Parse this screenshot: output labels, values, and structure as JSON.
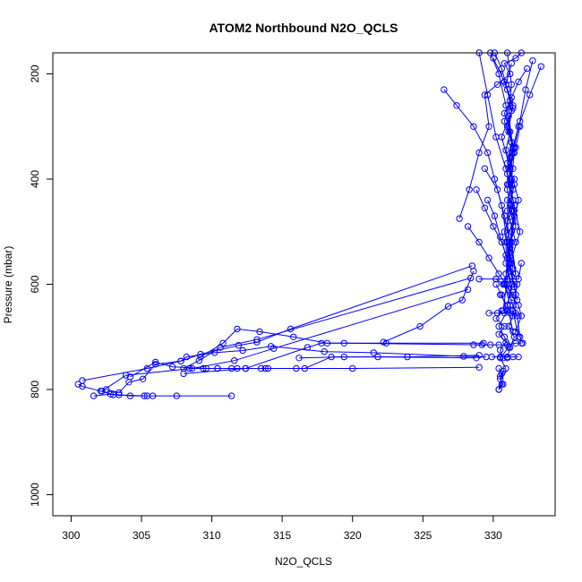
{
  "chart_data": {
    "type": "line",
    "title": "ATOM2 Northbound N2O_QCLS",
    "xlabel": "N2O_QCLS",
    "ylabel": "Pressure (mbar)",
    "xlim": [
      298.7,
      334.4
    ],
    "ylim": [
      1040,
      160
    ],
    "y_reversed": true,
    "x_ticks": [
      300,
      305,
      310,
      315,
      320,
      325,
      330
    ],
    "y_ticks": [
      200,
      400,
      600,
      800,
      1000
    ],
    "grid": false,
    "legend": "none",
    "marker": "open-circle",
    "color": "#0000ff",
    "series": [
      {
        "x": [
          311.4,
          307.5,
          305.8,
          305.4,
          304.2,
          303.4,
          302.8,
          301.6
        ],
        "y": [
          812,
          812,
          812,
          812,
          812,
          810,
          809,
          812
        ]
      },
      {
        "x": [
          305.2,
          303.0,
          302.1,
          300.8,
          300.5
        ],
        "y": [
          812,
          810,
          803,
          794,
          790
        ]
      },
      {
        "x": [
          328.6,
          327.8,
          326.8,
          324.8,
          322.2
        ],
        "y": [
          575,
          630,
          642,
          680,
          710
        ]
      },
      {
        "x": [
          329.0,
          323.9,
          318.5,
          316.6,
          314.0,
          313.5,
          312.4,
          311.4,
          310.4,
          309.4,
          308.4
        ],
        "y": [
          735,
          738,
          738,
          760,
          760,
          760,
          760,
          760,
          760,
          760,
          760
        ]
      },
      {
        "x": [
          329.0,
          320.0,
          316.0,
          313.8,
          311.8,
          310.4,
          309.6,
          307.2,
          306.0,
          304.2
        ],
        "y": [
          758,
          760,
          760,
          760,
          760,
          760,
          760,
          757,
          748,
          776
        ]
      },
      {
        "x": [
          329.5,
          327.9,
          321.5,
          318.0,
          314.2,
          312.2,
          310.2,
          308.2,
          307.8,
          306.0,
          305.1,
          304.1,
          303.4,
          302.5
        ],
        "y": [
          738,
          737,
          730,
          728,
          718,
          726,
          730,
          738,
          746,
          752,
          780,
          786,
          806,
          800
        ]
      },
      {
        "x": [
          329.3,
          322.4,
          318.2,
          315.8,
          313.4,
          311.8,
          310.8,
          309.2
        ],
        "y": [
          712,
          712,
          712,
          700,
          690,
          685,
          712,
          738
        ]
      },
      {
        "x": [
          328.5,
          315.6,
          313.2,
          311.9,
          309.2,
          307.8,
          305.4,
          300.8
        ],
        "y": [
          565,
          685,
          710,
          716,
          733,
          746,
          760,
          783
        ]
      },
      {
        "x": [
          328.4,
          313.2,
          310.6,
          309.1,
          308.0
        ],
        "y": [
          588,
          705,
          720,
          745,
          760
        ]
      },
      {
        "x": [
          328.2,
          314.4,
          311.6,
          308.6,
          303.9,
          302.2
        ],
        "y": [
          610,
          722,
          745,
          760,
          773,
          803
        ]
      },
      {
        "x": [
          329.2,
          319.4,
          317.8,
          316.8,
          312.4,
          308.0
        ],
        "y": [
          715,
          712,
          712,
          720,
          760,
          770
        ]
      },
      {
        "x": [
          328.8,
          321.8,
          319.4,
          316.2
        ],
        "y": [
          740,
          738,
          738,
          740
        ]
      },
      {
        "x": [
          327.6,
          328.3,
          329.0,
          329.7,
          329.4,
          330.3,
          331.2,
          330.8,
          331.6,
          332.0
        ],
        "y": [
          475,
          420,
          350,
          300,
          240,
          220,
          200,
          180,
          170,
          160
        ]
      },
      {
        "x": [
          326.5,
          327.4,
          328.6,
          329.6,
          330.1,
          330.6,
          331.0,
          331.4
        ],
        "y": [
          230,
          260,
          300,
          350,
          400,
          450,
          520,
          600
        ]
      },
      {
        "x": [
          330.2,
          330.6,
          331.0,
          330.4,
          330.8,
          331.1,
          330.5,
          330.9
        ],
        "y": [
          600,
          620,
          650,
          680,
          700,
          720,
          740,
          760
        ]
      },
      {
        "x": [
          330.4,
          330.6,
          330.5,
          330.7,
          330.4,
          330.6,
          330.5,
          330.7,
          330.4
        ],
        "y": [
          760,
          770,
          780,
          790,
          800,
          790,
          775,
          765,
          800
        ]
      },
      {
        "x": [
          333.4,
          332.6,
          331.8,
          331.2,
          331.4,
          331.0,
          331.2,
          330.8,
          331.4,
          331.7,
          331.9,
          332.1
        ],
        "y": [
          186,
          240,
          300,
          360,
          420,
          480,
          540,
          600,
          640,
          660,
          700,
          712
        ]
      },
      {
        "x": [
          331.0,
          331.3,
          331.1,
          331.4,
          331.2,
          331.5,
          331.3,
          331.6
        ],
        "y": [
          160,
          220,
          280,
          340,
          400,
          460,
          520,
          580
        ]
      },
      {
        "x": [
          329.8,
          330.4,
          330.9,
          331.3,
          331.0,
          331.5,
          331.2,
          331.7,
          331.4,
          331.8
        ],
        "y": [
          160,
          200,
          260,
          330,
          390,
          450,
          520,
          600,
          650,
          700
        ]
      },
      {
        "x": [
          332.8,
          332.3,
          331.9,
          331.4,
          331.1,
          331.5,
          331.2,
          331.0,
          330.7
        ],
        "y": [
          175,
          230,
          290,
          350,
          410,
          470,
          530,
          590,
          650
        ]
      },
      {
        "x": [
          329.0,
          329.6,
          330.2,
          330.9,
          331.4,
          331.9,
          331.2,
          331.6
        ],
        "y": [
          160,
          240,
          320,
          380,
          440,
          500,
          560,
          620
        ]
      },
      {
        "x": [
          330.0,
          330.8,
          331.4,
          330.6,
          331.2,
          331.8,
          331.3
        ],
        "y": [
          170,
          215,
          265,
          320,
          380,
          440,
          500
        ]
      },
      {
        "x": [
          329.4,
          330.3,
          330.8,
          331.2,
          330.9,
          331.3,
          331.0,
          331.4
        ],
        "y": [
          380,
          420,
          470,
          520,
          560,
          600,
          640,
          690
        ]
      },
      {
        "x": [
          330.1,
          330.6,
          331.0,
          331.3,
          331.1,
          331.5,
          331.3,
          331.0,
          331.6
        ],
        "y": [
          160,
          190,
          230,
          270,
          310,
          350,
          400,
          460,
          520
        ]
      },
      {
        "x": [
          331.2,
          330.8,
          331.3,
          331.0,
          331.5,
          331.2,
          331.6,
          331.1,
          331.4
        ],
        "y": [
          250,
          290,
          330,
          370,
          410,
          450,
          490,
          530,
          570
        ]
      },
      {
        "x": [
          328.8,
          329.4,
          330.0,
          330.6,
          331.0,
          331.3
        ],
        "y": [
          420,
          455,
          490,
          520,
          550,
          585
        ]
      },
      {
        "x": [
          328.2,
          329.0,
          329.7,
          330.4,
          330.9,
          331.4
        ],
        "y": [
          490,
          520,
          550,
          580,
          600,
          620
        ]
      },
      {
        "x": [
          331.9,
          331.6,
          331.2,
          331.0,
          331.3,
          330.8,
          331.1,
          330.9
        ],
        "y": [
          300,
          340,
          380,
          420,
          460,
          500,
          540,
          580
        ]
      },
      {
        "x": [
          330.5,
          331.0,
          331.4,
          331.1,
          331.5,
          331.2,
          331.0
        ],
        "y": [
          620,
          640,
          660,
          680,
          700,
          720,
          740
        ]
      },
      {
        "x": [
          330.2,
          330.7,
          331.1,
          331.4,
          331.8,
          332.0,
          331.6
        ],
        "y": [
          590,
          600,
          610,
          625,
          640,
          660,
          690
        ]
      },
      {
        "x": [
          331.3,
          330.9,
          331.4,
          331.0,
          331.5,
          331.1
        ],
        "y": [
          180,
          220,
          260,
          300,
          340,
          380
        ]
      },
      {
        "x": [
          332.4,
          331.8,
          331.3,
          330.8,
          331.2,
          330.9,
          331.4,
          331.0
        ],
        "y": [
          190,
          215,
          245,
          275,
          310,
          345,
          380,
          410
        ]
      },
      {
        "x": [
          329.6,
          330.1,
          330.5,
          330.9,
          331.2,
          331.5,
          331.7
        ],
        "y": [
          440,
          470,
          510,
          545,
          575,
          605,
          630
        ]
      },
      {
        "x": [
          331.5,
          331.0,
          331.4,
          330.9,
          331.3,
          330.8,
          331.2
        ],
        "y": [
          400,
          440,
          480,
          520,
          560,
          600,
          640
        ]
      },
      {
        "x": [
          330.6,
          330.2,
          330.8,
          330.4,
          330.9,
          330.5,
          330.7
        ],
        "y": [
          650,
          665,
          680,
          695,
          710,
          725,
          740
        ]
      },
      {
        "x": [
          328.6,
          329.8,
          330.4,
          331.0,
          331.6,
          332.0
        ],
        "y": [
          715,
          715,
          715,
          715,
          712,
          712
        ]
      },
      {
        "x": [
          329.0,
          330.2,
          331.0,
          331.8,
          332.0
        ],
        "y": [
          590,
          590,
          590,
          590,
          560
        ]
      },
      {
        "x": [
          329.7,
          330.3,
          330.8,
          331.2,
          331.6
        ],
        "y": [
          655,
          655,
          655,
          655,
          655
        ]
      },
      {
        "x": [
          329.9,
          330.5,
          331.0,
          331.4,
          331.8
        ],
        "y": [
          738,
          738,
          738,
          738,
          738
        ]
      }
    ]
  }
}
